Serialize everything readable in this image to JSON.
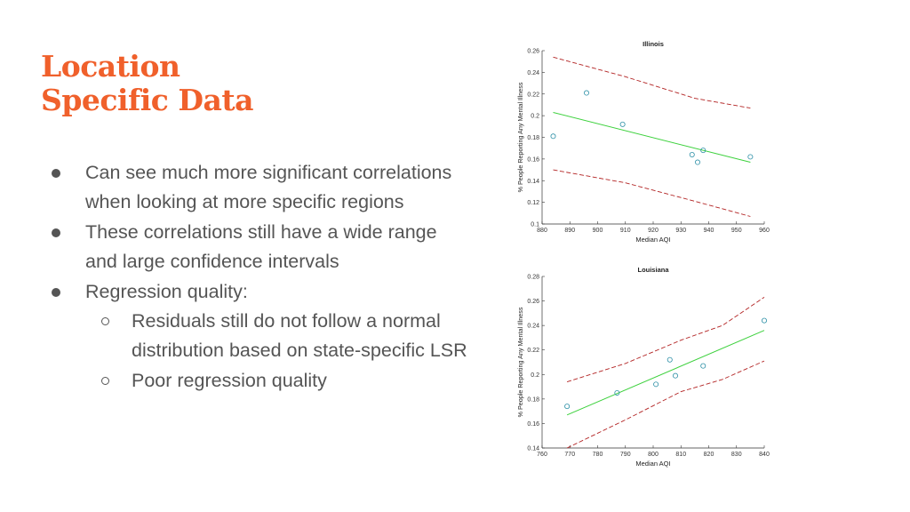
{
  "slide": {
    "title_lines": [
      "Location",
      "Specific Data"
    ],
    "bullets": [
      {
        "level": 1,
        "text": "Can see much more significant correlations when looking at more specific regions"
      },
      {
        "level": 1,
        "text": "These correlations still have a wide range and large confidence intervals"
      },
      {
        "level": 1,
        "text": "Regression quality:"
      },
      {
        "level": 2,
        "text": "Residuals still do not follow a normal distribution based on state-specific LSR"
      },
      {
        "level": 2,
        "text": "Poor regression quality"
      }
    ]
  },
  "colors": {
    "title": "#f0602b",
    "text": "#555555",
    "points": "#2b8fa6",
    "fit": "#3dd13d",
    "confidence": "#b22222"
  },
  "chart_data": [
    {
      "type": "scatter",
      "title": "Illinois",
      "xlabel": "Median AQI",
      "ylabel": "% People Reporting Any Mental Illness",
      "xlim": [
        880,
        960
      ],
      "ylim": [
        0.1,
        0.26
      ],
      "xticks": [
        880,
        890,
        900,
        910,
        920,
        930,
        940,
        950,
        960
      ],
      "yticks": [
        0.1,
        0.12,
        0.14,
        0.16,
        0.18,
        0.2,
        0.22,
        0.24,
        0.26
      ],
      "points": [
        [
          884,
          0.181
        ],
        [
          896,
          0.221
        ],
        [
          909,
          0.192
        ],
        [
          934,
          0.164
        ],
        [
          936,
          0.157
        ],
        [
          938,
          0.168
        ],
        [
          955,
          0.162
        ]
      ],
      "fit": [
        [
          884,
          0.203
        ],
        [
          955,
          0.157
        ]
      ],
      "confidence_upper": [
        [
          884,
          0.254
        ],
        [
          910,
          0.236
        ],
        [
          935,
          0.216
        ],
        [
          955,
          0.207
        ]
      ],
      "confidence_lower": [
        [
          884,
          0.15
        ],
        [
          910,
          0.138
        ],
        [
          935,
          0.121
        ],
        [
          955,
          0.107
        ]
      ]
    },
    {
      "type": "scatter",
      "title": "Louisiana",
      "xlabel": "Median AQI",
      "ylabel": "% People Reporting Any Mental Illness",
      "xlim": [
        760,
        840
      ],
      "ylim": [
        0.14,
        0.28
      ],
      "xticks": [
        760,
        770,
        780,
        790,
        800,
        810,
        820,
        830,
        840
      ],
      "yticks": [
        0.14,
        0.16,
        0.18,
        0.2,
        0.22,
        0.24,
        0.26,
        0.28
      ],
      "points": [
        [
          769,
          0.174
        ],
        [
          787,
          0.185
        ],
        [
          801,
          0.192
        ],
        [
          806,
          0.212
        ],
        [
          808,
          0.199
        ],
        [
          818,
          0.207
        ],
        [
          840,
          0.244
        ]
      ],
      "fit": [
        [
          769,
          0.167
        ],
        [
          840,
          0.236
        ]
      ],
      "confidence_upper": [
        [
          769,
          0.194
        ],
        [
          790,
          0.209
        ],
        [
          810,
          0.228
        ],
        [
          825,
          0.24
        ],
        [
          840,
          0.263
        ]
      ],
      "confidence_lower": [
        [
          769,
          0.14
        ],
        [
          790,
          0.163
        ],
        [
          810,
          0.186
        ],
        [
          825,
          0.196
        ],
        [
          840,
          0.211
        ]
      ]
    }
  ]
}
